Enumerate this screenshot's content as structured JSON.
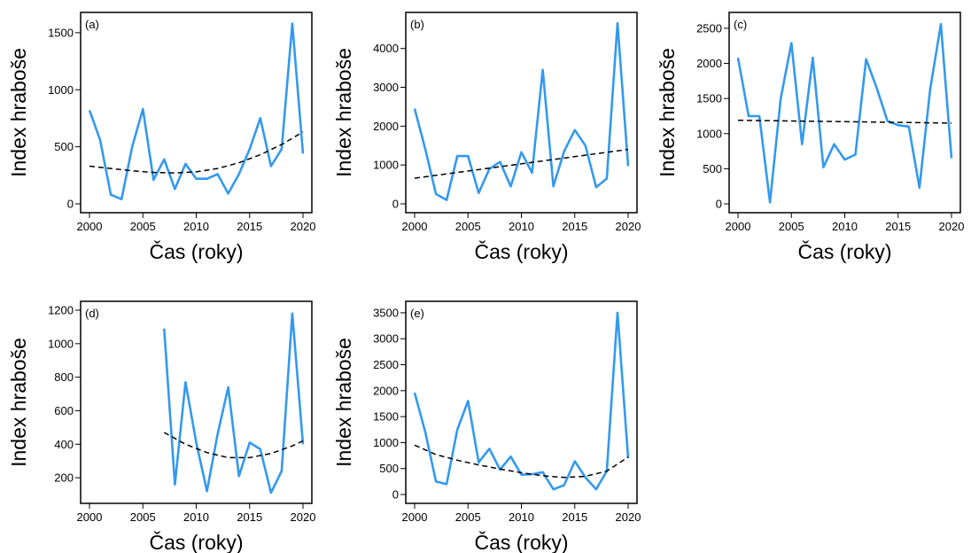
{
  "colors": {
    "series": "#3399ee",
    "trend": "#000000",
    "frame": "#000000"
  },
  "chart_data": [
    {
      "type": "line",
      "panel": "(a)",
      "xlabel": "Čas (roky)",
      "ylabel": "Index hraboše",
      "xlim": [
        2000,
        2020
      ],
      "ylim": [
        0,
        1600
      ],
      "xticks": [
        2000,
        2005,
        2010,
        2015,
        2020
      ],
      "yticks": [
        0,
        500,
        1000,
        1500
      ],
      "series": [
        {
          "x": [
            2000,
            2001,
            2002,
            2003,
            2004,
            2005,
            2006,
            2007,
            2008,
            2009,
            2010,
            2011,
            2012,
            2013,
            2014,
            2015,
            2016,
            2017,
            2018,
            2019,
            2020
          ],
          "values": [
            820,
            560,
            80,
            40,
            500,
            830,
            210,
            390,
            130,
            350,
            220,
            220,
            260,
            90,
            260,
            480,
            750,
            330,
            480,
            1580,
            440
          ]
        },
        {
          "style": "dashed",
          "x": [
            2000,
            2002,
            2004,
            2006,
            2008,
            2010,
            2012,
            2014,
            2016,
            2018,
            2020
          ],
          "values": [
            330,
            310,
            290,
            275,
            270,
            280,
            310,
            360,
            430,
            520,
            630
          ]
        }
      ]
    },
    {
      "type": "line",
      "panel": "(b)",
      "xlabel": "Čas (roky)",
      "ylabel": "Index hraboše",
      "xlim": [
        2000,
        2020
      ],
      "ylim": [
        0,
        4700
      ],
      "xticks": [
        2000,
        2005,
        2010,
        2015,
        2020
      ],
      "yticks": [
        0,
        1000,
        2000,
        3000,
        4000
      ],
      "series": [
        {
          "x": [
            2000,
            2001,
            2002,
            2003,
            2004,
            2005,
            2006,
            2007,
            2008,
            2009,
            2010,
            2011,
            2012,
            2013,
            2014,
            2015,
            2016,
            2017,
            2018,
            2019,
            2020
          ],
          "values": [
            2450,
            1400,
            250,
            100,
            1230,
            1230,
            280,
            900,
            1080,
            450,
            1330,
            800,
            3450,
            450,
            1350,
            1900,
            1500,
            430,
            650,
            4650,
            970
          ]
        },
        {
          "style": "dashed",
          "x": [
            2000,
            2020
          ],
          "values": [
            660,
            1400
          ]
        }
      ]
    },
    {
      "type": "line",
      "panel": "(c)",
      "xlabel": "Čas (roky)",
      "ylabel": "Index hraboše",
      "xlim": [
        2000,
        2020
      ],
      "ylim": [
        0,
        2600
      ],
      "xticks": [
        2000,
        2005,
        2010,
        2015,
        2020
      ],
      "yticks": [
        0,
        500,
        1000,
        1500,
        2000,
        2500
      ],
      "series": [
        {
          "x": [
            2000,
            2001,
            2002,
            2003,
            2004,
            2005,
            2006,
            2007,
            2008,
            2009,
            2010,
            2011,
            2012,
            2013,
            2014,
            2015,
            2016,
            2017,
            2018,
            2019,
            2020
          ],
          "values": [
            2080,
            1250,
            1250,
            20,
            1500,
            2290,
            850,
            2080,
            520,
            850,
            630,
            700,
            2060,
            1650,
            1180,
            1120,
            1100,
            230,
            1630,
            2560,
            650
          ]
        },
        {
          "style": "dashed",
          "x": [
            2000,
            2020
          ],
          "values": [
            1190,
            1150
          ]
        }
      ]
    },
    {
      "type": "line",
      "panel": "(d)",
      "xlabel": "Čas (roky)",
      "ylabel": "Index hraboše",
      "xlim": [
        2000,
        2020
      ],
      "ylim": [
        100,
        1200
      ],
      "xticks": [
        2000,
        2005,
        2010,
        2015,
        2020
      ],
      "yticks": [
        200,
        400,
        600,
        800,
        1000,
        1200
      ],
      "series": [
        {
          "x": [
            2007,
            2008,
            2009,
            2010,
            2011,
            2012,
            2013,
            2014,
            2015,
            2016,
            2017,
            2018,
            2019,
            2020
          ],
          "values": [
            1090,
            160,
            770,
            410,
            120,
            460,
            740,
            210,
            410,
            370,
            110,
            240,
            1180,
            400
          ]
        },
        {
          "style": "dashed",
          "x": [
            2007,
            2009,
            2011,
            2013,
            2015,
            2017,
            2019,
            2020
          ],
          "values": [
            470,
            400,
            350,
            320,
            320,
            345,
            390,
            420
          ]
        }
      ]
    },
    {
      "type": "line",
      "panel": "(e)",
      "xlabel": "Čas (roky)",
      "ylabel": "Index hraboše",
      "xlim": [
        2000,
        2020
      ],
      "ylim": [
        0,
        3550
      ],
      "xticks": [
        2000,
        2005,
        2010,
        2015,
        2020
      ],
      "yticks": [
        0,
        500,
        1000,
        1500,
        2000,
        2500,
        3000,
        3500
      ],
      "series": [
        {
          "x": [
            2000,
            2001,
            2002,
            2003,
            2004,
            2005,
            2006,
            2007,
            2008,
            2009,
            2010,
            2011,
            2012,
            2013,
            2014,
            2015,
            2016,
            2017,
            2018,
            2019,
            2020
          ],
          "values": [
            1960,
            1200,
            250,
            200,
            1250,
            1800,
            620,
            880,
            480,
            730,
            380,
            390,
            430,
            100,
            180,
            640,
            330,
            100,
            450,
            3500,
            700
          ]
        },
        {
          "style": "dashed",
          "x": [
            2000,
            2002,
            2004,
            2006,
            2008,
            2010,
            2012,
            2014,
            2016,
            2018,
            2020
          ],
          "values": [
            950,
            770,
            660,
            570,
            490,
            420,
            360,
            330,
            350,
            450,
            720
          ]
        }
      ]
    }
  ]
}
